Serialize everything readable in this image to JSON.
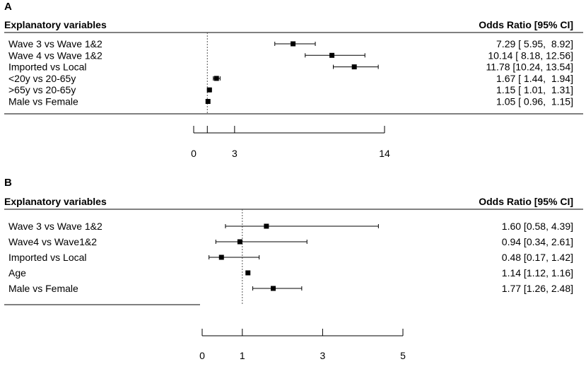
{
  "chart_data": [
    {
      "type": "forest",
      "panel_label": "A",
      "header_left": "Explanatory variables",
      "header_right": "Odds Ratio [95% CI]",
      "rows": [
        {
          "label": "Wave 3 vs Wave 1&2",
          "or": 7.29,
          "lo": 5.95,
          "hi": 8.92,
          "text": "7.29 [ 5.95,  8.92]"
        },
        {
          "label": "Wave 4 vs Wave 1&2",
          "or": 10.14,
          "lo": 8.18,
          "hi": 12.56,
          "text": "10.14 [ 8.18, 12.56]"
        },
        {
          "label": "Imported vs Local",
          "or": 11.78,
          "lo": 10.24,
          "hi": 13.54,
          "text": "11.78 [10.24, 13.54]"
        },
        {
          "label": "<20y vs 20-65y",
          "or": 1.67,
          "lo": 1.44,
          "hi": 1.94,
          "text": "1.67 [ 1.44,  1.94]"
        },
        {
          "label": ">65y vs 20-65y",
          "or": 1.15,
          "lo": 1.01,
          "hi": 1.31,
          "text": "1.15 [ 1.01,  1.31]"
        },
        {
          "label": "Male vs Female",
          "or": 1.05,
          "lo": 0.96,
          "hi": 1.15,
          "text": "1.05 [ 0.96,  1.15]"
        }
      ],
      "reference_line": 1,
      "xlim": [
        0,
        14
      ],
      "ticks": [
        0,
        1,
        3,
        14
      ],
      "tick_labels": [
        "0",
        "",
        "3",
        "14"
      ]
    },
    {
      "type": "forest",
      "panel_label": "B",
      "header_left": "Explanatory variables",
      "header_right": "Odds Ratio [95% CI]",
      "rows": [
        {
          "label": "Wave 3 vs Wave 1&2",
          "or": 1.6,
          "lo": 0.58,
          "hi": 4.39,
          "text": "1.60 [0.58, 4.39]"
        },
        {
          "label": "Wave4 vs Wave1&2",
          "or": 0.94,
          "lo": 0.34,
          "hi": 2.61,
          "text": "0.94 [0.34, 2.61]"
        },
        {
          "label": "Imported vs Local",
          "or": 0.48,
          "lo": 0.17,
          "hi": 1.42,
          "text": "0.48 [0.17, 1.42]"
        },
        {
          "label": "Age",
          "or": 1.14,
          "lo": 1.12,
          "hi": 1.16,
          "text": "1.14 [1.12, 1.16]"
        },
        {
          "label": "Male vs Female",
          "or": 1.77,
          "lo": 1.26,
          "hi": 2.48,
          "text": "1.77 [1.26, 2.48]"
        }
      ],
      "reference_line": 1,
      "xlim": [
        0,
        5
      ],
      "ticks": [
        0,
        1,
        3,
        5
      ],
      "tick_labels": [
        "0",
        "1",
        "3",
        "5"
      ]
    }
  ]
}
